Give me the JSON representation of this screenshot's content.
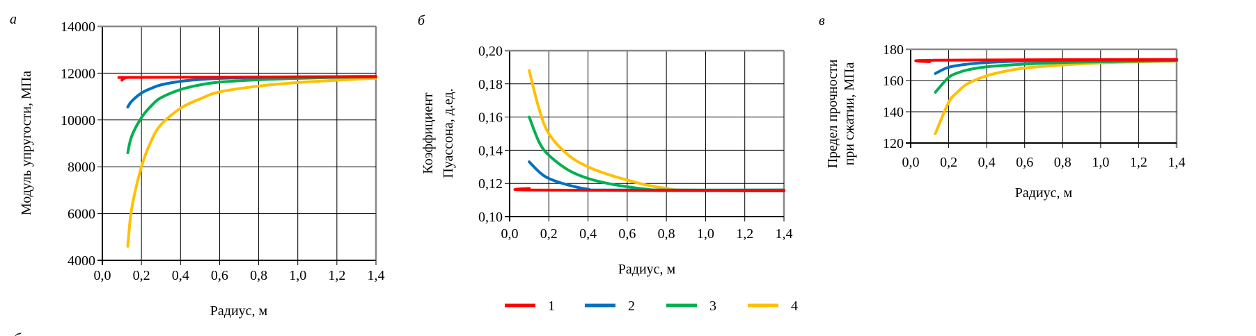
{
  "panel_labels": [
    "а",
    "б",
    "в",
    "б"
  ],
  "legend": [
    {
      "label": "1",
      "color": "#ff0000"
    },
    {
      "label": "2",
      "color": "#0070c0"
    },
    {
      "label": "3",
      "color": "#00b050"
    },
    {
      "label": "4",
      "color": "#ffc000"
    }
  ],
  "chart_data": [
    {
      "type": "line",
      "title": "",
      "xlabel": "Радиус, м",
      "ylabel": [
        "Модуль упругости, МПа"
      ],
      "xlim": [
        0,
        1.4
      ],
      "ylim": [
        4000,
        14000
      ],
      "xticks": [
        "0,0",
        "0,2",
        "0,4",
        "0,6",
        "0,8",
        "1,0",
        "1,2",
        "1,4"
      ],
      "yticks": [
        "4000",
        "6000",
        "8000",
        "10000",
        "12000",
        "14000"
      ],
      "grid": true,
      "series": [
        {
          "name": "1",
          "x": [
            0.1,
            0.12,
            0.2,
            1.4
          ],
          "y": [
            11700,
            11800,
            11820,
            11850
          ]
        },
        {
          "name": "2",
          "x": [
            0.13,
            0.15,
            0.2,
            0.25,
            0.3,
            0.4,
            0.5,
            0.6,
            0.8,
            1.0,
            1.4
          ],
          "y": [
            10550,
            10800,
            11150,
            11350,
            11500,
            11650,
            11730,
            11780,
            11820,
            11840,
            11860
          ]
        },
        {
          "name": "3",
          "x": [
            0.13,
            0.15,
            0.2,
            0.25,
            0.3,
            0.4,
            0.5,
            0.6,
            0.8,
            1.0,
            1.2,
            1.4
          ],
          "y": [
            8600,
            9300,
            10100,
            10600,
            10950,
            11300,
            11500,
            11620,
            11720,
            11780,
            11820,
            11840
          ]
        },
        {
          "name": "4",
          "x": [
            0.13,
            0.15,
            0.2,
            0.25,
            0.3,
            0.4,
            0.5,
            0.6,
            0.8,
            1.0,
            1.2,
            1.4
          ],
          "y": [
            4600,
            6200,
            8000,
            9100,
            9800,
            10500,
            10900,
            11200,
            11450,
            11600,
            11700,
            11780
          ]
        }
      ]
    },
    {
      "type": "line",
      "title": "",
      "xlabel": "Радиус, м",
      "ylabel": [
        "Коэффициент",
        "Пуассона, д.ед."
      ],
      "xlim": [
        0,
        1.4
      ],
      "ylim": [
        0.1,
        0.2
      ],
      "xticks": [
        "0,0",
        "0,2",
        "0,4",
        "0,6",
        "0,8",
        "1,0",
        "1,2",
        "1,4"
      ],
      "yticks": [
        "0,10",
        "0,12",
        "0,14",
        "0,16",
        "0,18",
        "0,20"
      ],
      "grid": true,
      "legend_position": "bottom",
      "series": [
        {
          "name": "1",
          "x": [
            0.1,
            0.13,
            1.4
          ],
          "y": [
            0.117,
            0.116,
            0.1155
          ]
        },
        {
          "name": "2",
          "x": [
            0.1,
            0.15,
            0.2,
            0.3,
            0.4,
            0.5,
            1.4
          ],
          "y": [
            0.133,
            0.127,
            0.123,
            0.119,
            0.1165,
            0.116,
            0.116
          ]
        },
        {
          "name": "3",
          "x": [
            0.1,
            0.15,
            0.2,
            0.3,
            0.4,
            0.5,
            0.6,
            0.7,
            0.8,
            1.4
          ],
          "y": [
            0.16,
            0.145,
            0.137,
            0.128,
            0.123,
            0.12,
            0.118,
            0.1165,
            0.116,
            0.116
          ]
        },
        {
          "name": "4",
          "x": [
            0.1,
            0.15,
            0.2,
            0.3,
            0.4,
            0.5,
            0.6,
            0.7,
            0.8,
            0.9,
            1.4
          ],
          "y": [
            0.188,
            0.165,
            0.15,
            0.137,
            0.13,
            0.1255,
            0.122,
            0.119,
            0.117,
            0.116,
            0.116
          ]
        }
      ]
    },
    {
      "type": "line",
      "title": "",
      "xlabel": "Радиус, м",
      "ylabel": [
        "Предел прочности",
        "при сжатии, МПа"
      ],
      "xlim": [
        0,
        1.4
      ],
      "ylim": [
        120,
        180
      ],
      "xticks": [
        "0,0",
        "0,2",
        "0,4",
        "0,6",
        "0,8",
        "1,0",
        "1,2",
        "1,4"
      ],
      "yticks": [
        "120",
        "140",
        "160",
        "180"
      ],
      "grid": true,
      "series": [
        {
          "name": "1",
          "x": [
            0.1,
            0.13,
            1.4
          ],
          "y": [
            172,
            173,
            173.5
          ]
        },
        {
          "name": "2",
          "x": [
            0.13,
            0.2,
            0.3,
            0.4,
            0.6,
            1.0,
            1.4
          ],
          "y": [
            164.5,
            168.5,
            170.5,
            171.5,
            172.5,
            173,
            173
          ]
        },
        {
          "name": "3",
          "x": [
            0.13,
            0.2,
            0.25,
            0.3,
            0.4,
            0.6,
            0.8,
            1.0,
            1.4
          ],
          "y": [
            152.5,
            162,
            165,
            166.8,
            168.8,
            170.5,
            171.5,
            172,
            172.8
          ]
        },
        {
          "name": "4",
          "x": [
            0.13,
            0.2,
            0.25,
            0.3,
            0.4,
            0.5,
            0.6,
            0.8,
            1.0,
            1.2,
            1.4
          ],
          "y": [
            126,
            146,
            153,
            158,
            163,
            166,
            168,
            170,
            171.3,
            172,
            172.5
          ]
        }
      ]
    }
  ]
}
